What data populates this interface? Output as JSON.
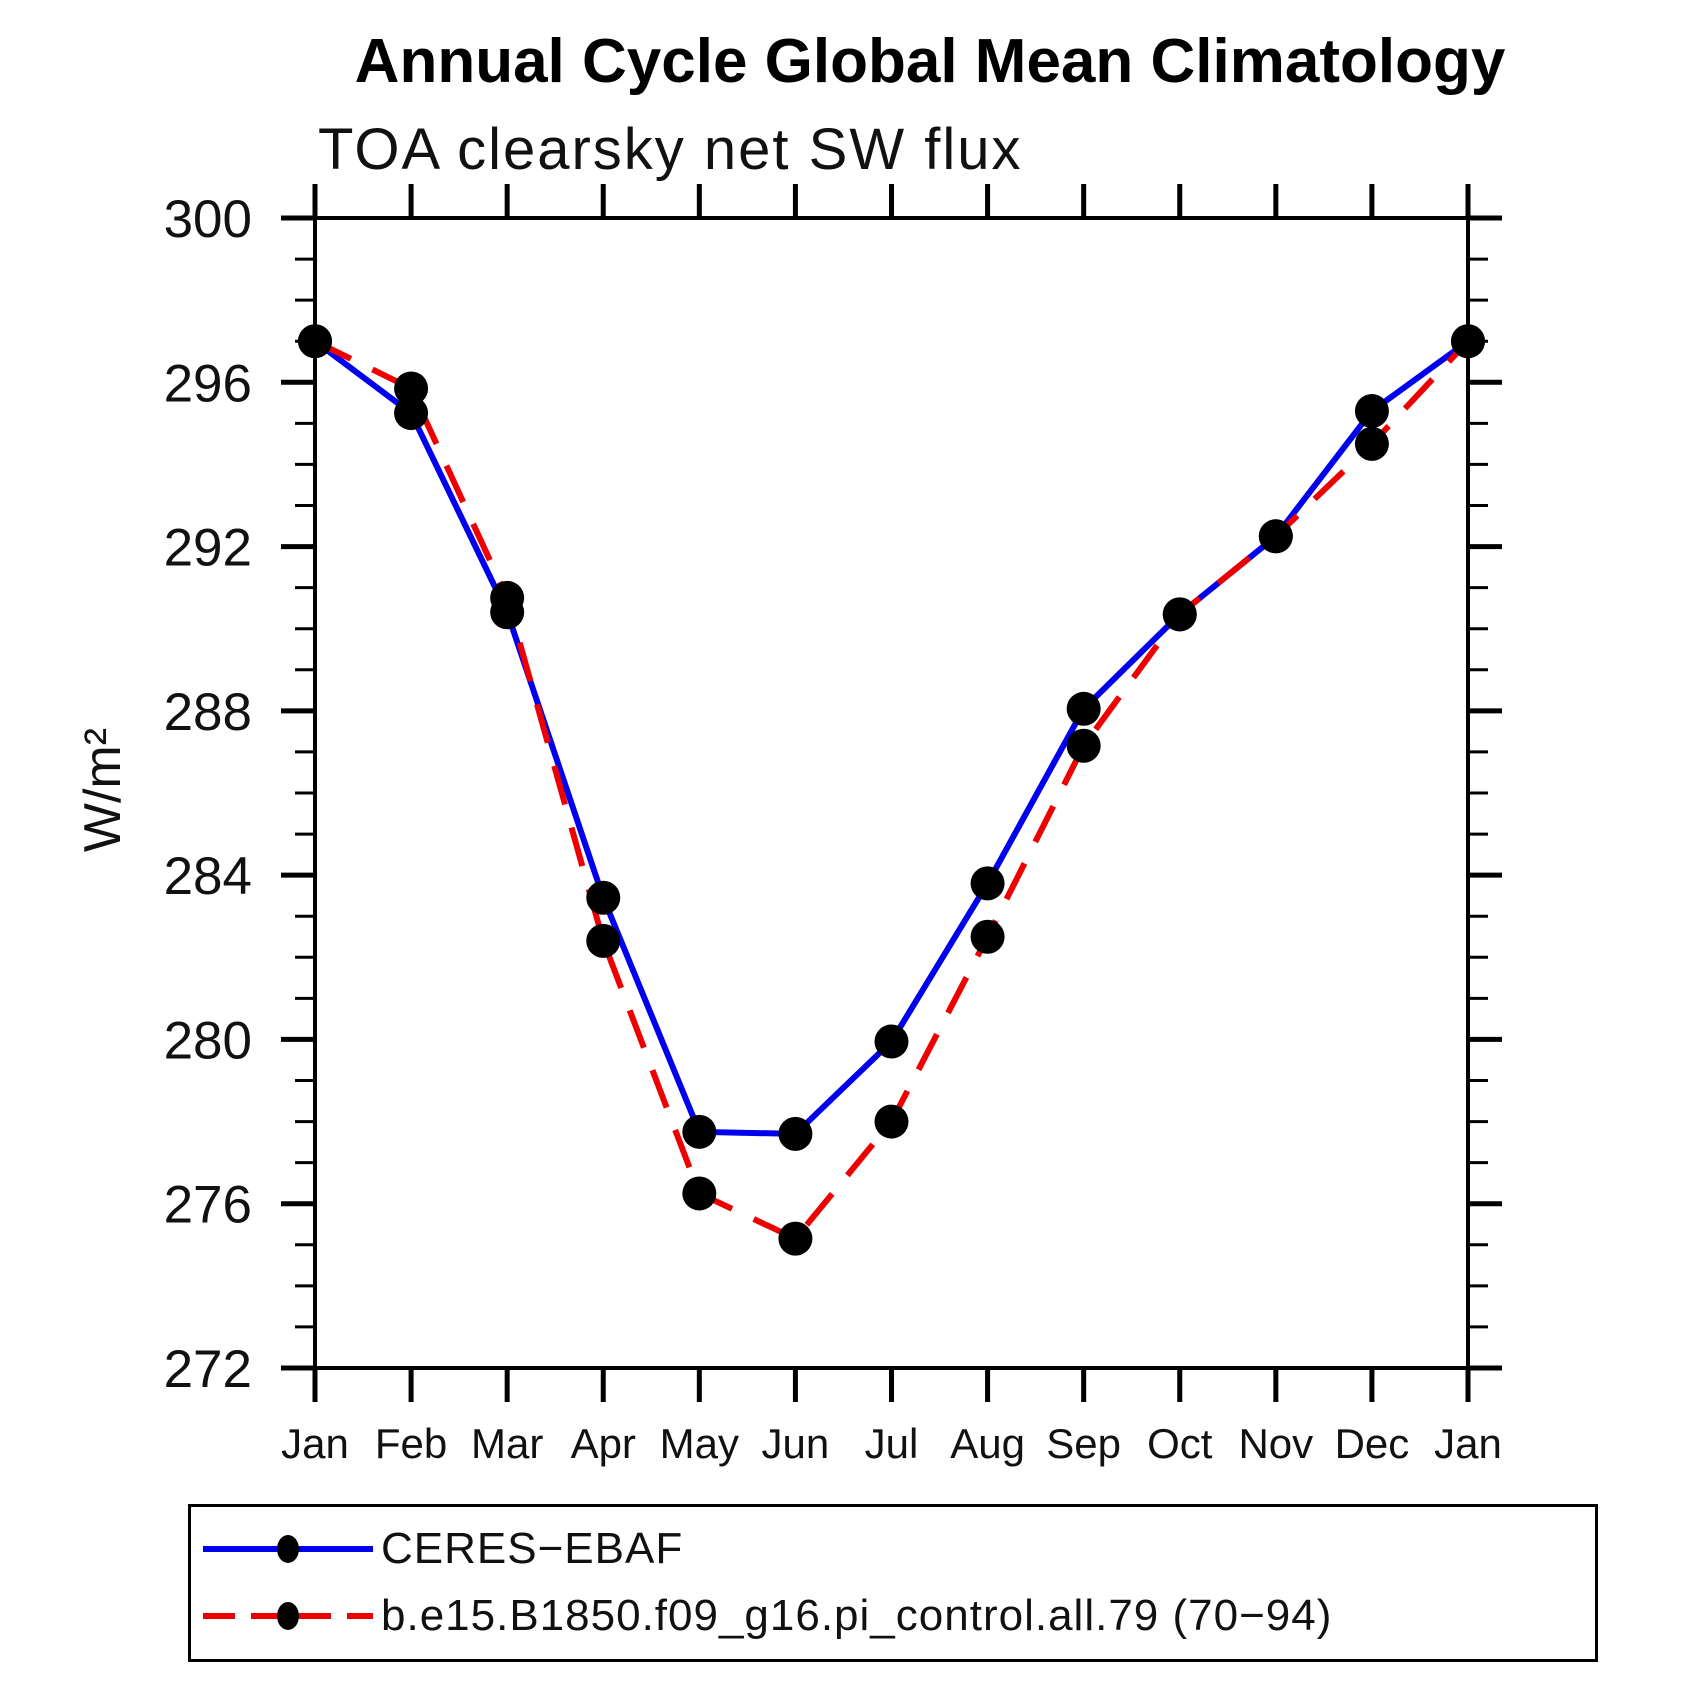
{
  "title": "Annual Cycle Global Mean Climatology",
  "subtitle": "TOA clearsky net SW flux",
  "y_axis_label": "W/m²",
  "chart_data": {
    "type": "line",
    "x_categories": [
      "Jan",
      "Feb",
      "Mar",
      "Apr",
      "May",
      "Jun",
      "Jul",
      "Aug",
      "Sep",
      "Oct",
      "Nov",
      "Dec",
      "Jan"
    ],
    "xlabel": "",
    "ylabel": "W/m²",
    "ylim": [
      272,
      300
    ],
    "y_major_ticks": [
      272,
      276,
      280,
      284,
      288,
      292,
      296,
      300
    ],
    "y_minor_tick_interval": 1,
    "grid": false,
    "legend_position": "bottom-left",
    "series": [
      {
        "name": "CERES−EBAF",
        "color": "#0000ee",
        "style": "solid",
        "marker": "filled-circle",
        "marker_color": "#000000",
        "values": [
          297.0,
          295.25,
          290.4,
          283.45,
          277.75,
          277.7,
          279.95,
          283.8,
          288.05,
          290.35,
          292.25,
          295.3,
          297.0
        ]
      },
      {
        "name": "b.e15.B1850.f09_g16.pi_control.all.79 (70−94)",
        "color": "#ee0000",
        "style": "dashed",
        "marker": "filled-circle",
        "marker_color": "#000000",
        "values": [
          297.0,
          295.85,
          290.75,
          282.4,
          276.25,
          275.15,
          278.0,
          282.5,
          287.15,
          290.35,
          292.25,
          294.5,
          297.0
        ]
      }
    ]
  }
}
